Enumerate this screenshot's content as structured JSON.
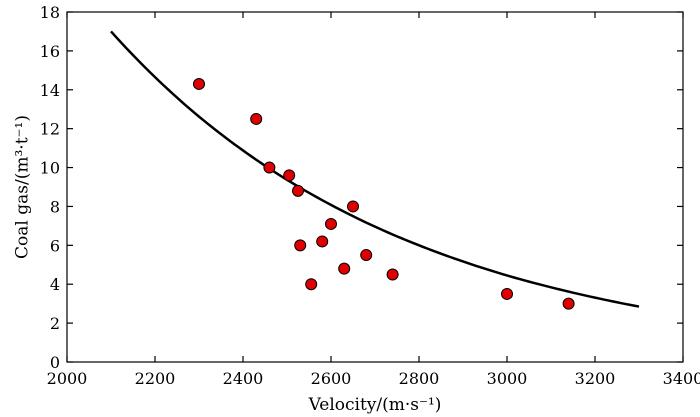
{
  "chart_data": {
    "type": "scatter",
    "xlabel": "Velocity/(m·s⁻¹)",
    "ylabel": "Coal gas/(m³·t⁻¹)",
    "xlim": [
      2000,
      3400
    ],
    "ylim": [
      0,
      18
    ],
    "xticks": [
      2000,
      2200,
      2400,
      2600,
      2800,
      3000,
      3200,
      3400
    ],
    "yticks": [
      0,
      2,
      4,
      6,
      8,
      10,
      12,
      14,
      16,
      18
    ],
    "grid": false,
    "point_color": "#e00000",
    "points": [
      {
        "x": 2300,
        "y": 14.3
      },
      {
        "x": 2430,
        "y": 12.5
      },
      {
        "x": 2460,
        "y": 10.0
      },
      {
        "x": 2505,
        "y": 9.6
      },
      {
        "x": 2525,
        "y": 8.8
      },
      {
        "x": 2530,
        "y": 6.0
      },
      {
        "x": 2555,
        "y": 4.0
      },
      {
        "x": 2580,
        "y": 6.2
      },
      {
        "x": 2600,
        "y": 7.1
      },
      {
        "x": 2630,
        "y": 4.8
      },
      {
        "x": 2650,
        "y": 8.0
      },
      {
        "x": 2680,
        "y": 5.5
      },
      {
        "x": 2740,
        "y": 4.5
      },
      {
        "x": 3000,
        "y": 3.5
      },
      {
        "x": 3140,
        "y": 3.0
      }
    ],
    "fit_curve": {
      "type": "exponential",
      "x_range": [
        2100,
        3300
      ],
      "points": [
        {
          "x": 2100,
          "y": 17.0
        },
        {
          "x": 2200,
          "y": 14.65
        },
        {
          "x": 2300,
          "y": 12.62
        },
        {
          "x": 2400,
          "y": 10.88
        },
        {
          "x": 2500,
          "y": 9.37
        },
        {
          "x": 2600,
          "y": 8.08
        },
        {
          "x": 2700,
          "y": 6.96
        },
        {
          "x": 2800,
          "y": 6.0
        },
        {
          "x": 2900,
          "y": 5.17
        },
        {
          "x": 3000,
          "y": 4.45
        },
        {
          "x": 3100,
          "y": 3.84
        },
        {
          "x": 3200,
          "y": 3.31
        },
        {
          "x": 3300,
          "y": 2.85
        }
      ]
    }
  }
}
